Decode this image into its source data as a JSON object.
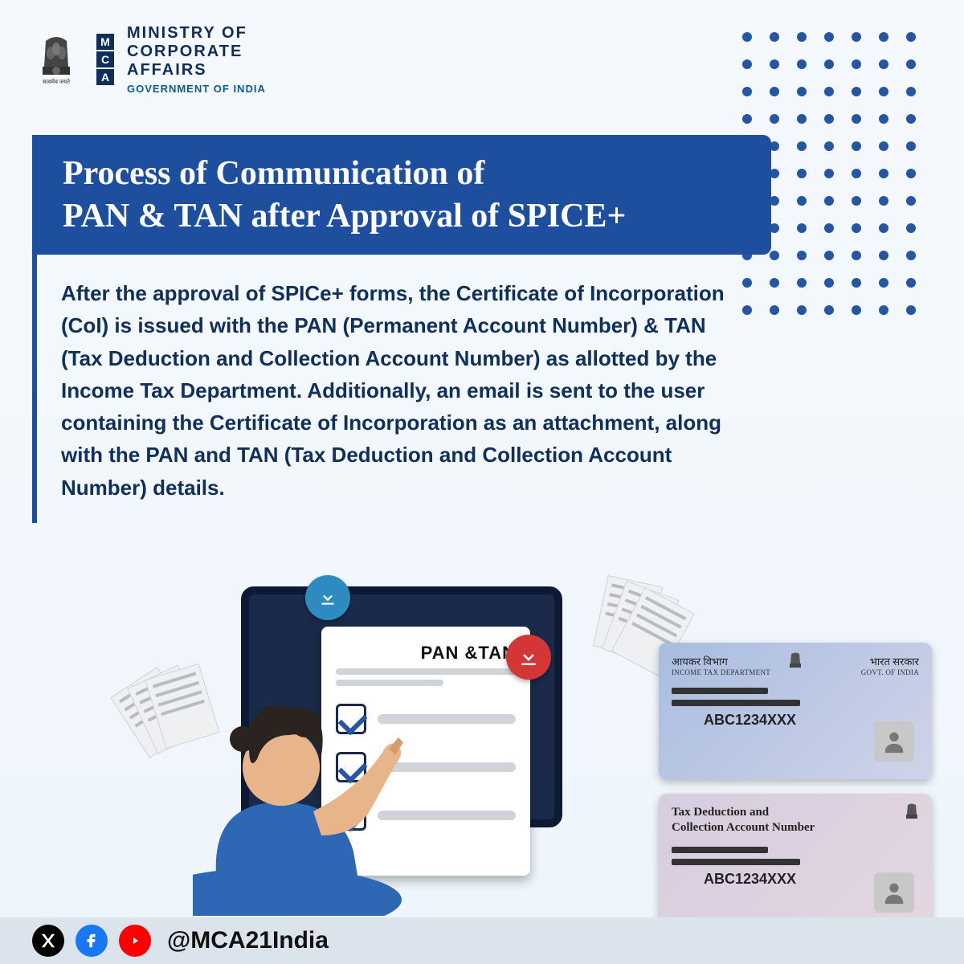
{
  "header": {
    "emblem_caption": "सत्यमेव जयते",
    "mca_letters": [
      "M",
      "C",
      "A"
    ],
    "ministry_line1": "MINISTRY OF",
    "ministry_line2": "CORPORATE",
    "ministry_line3": "AFFAIRS",
    "gov_line": "GOVERNMENT OF INDIA"
  },
  "dot_grid": {
    "cols": 7,
    "rows": 11,
    "color": "#2656a3"
  },
  "title_bar": {
    "line1": "Process of Communication of",
    "line2": "PAN & TAN after Approval of SPICE+",
    "bg": "#1d4f9e",
    "text_color": "#ffffff"
  },
  "body_text": "After the approval of SPICe+ forms, the Certificate of Incorporation (CoI) is issued with the PAN (Permanent Account Number) & TAN (Tax Deduction and Collection Account Number) as allotted by the Income Tax Department. Additionally, an email is sent to the user containing the Certificate of Incorporation as an attachment, along with the PAN and TAN (Tax Deduction and Collection Account Number) details.",
  "illustration": {
    "paper_label": "PAN &TAN",
    "download_icons": [
      "blue",
      "red"
    ]
  },
  "pan_card": {
    "hindi_dept": "आयकर विभाग",
    "hindi_gov": "भारत सरकार",
    "eng_dept": "INCOME TAX DEPARTMENT",
    "eng_gov": "GOVT. OF INDIA",
    "number": "ABC1234XXX"
  },
  "tan_card": {
    "title_line1": "Tax Deduction and",
    "title_line2": "Collection Account Number",
    "number": "ABC1234XXX"
  },
  "footer": {
    "icons": [
      "x",
      "facebook",
      "youtube"
    ],
    "handle": "@MCA21India"
  },
  "colors": {
    "bg_top": "#f5f9fd",
    "navy": "#0f2e5a",
    "title_blue": "#1d4f9e",
    "text_blue": "#102f5a"
  }
}
